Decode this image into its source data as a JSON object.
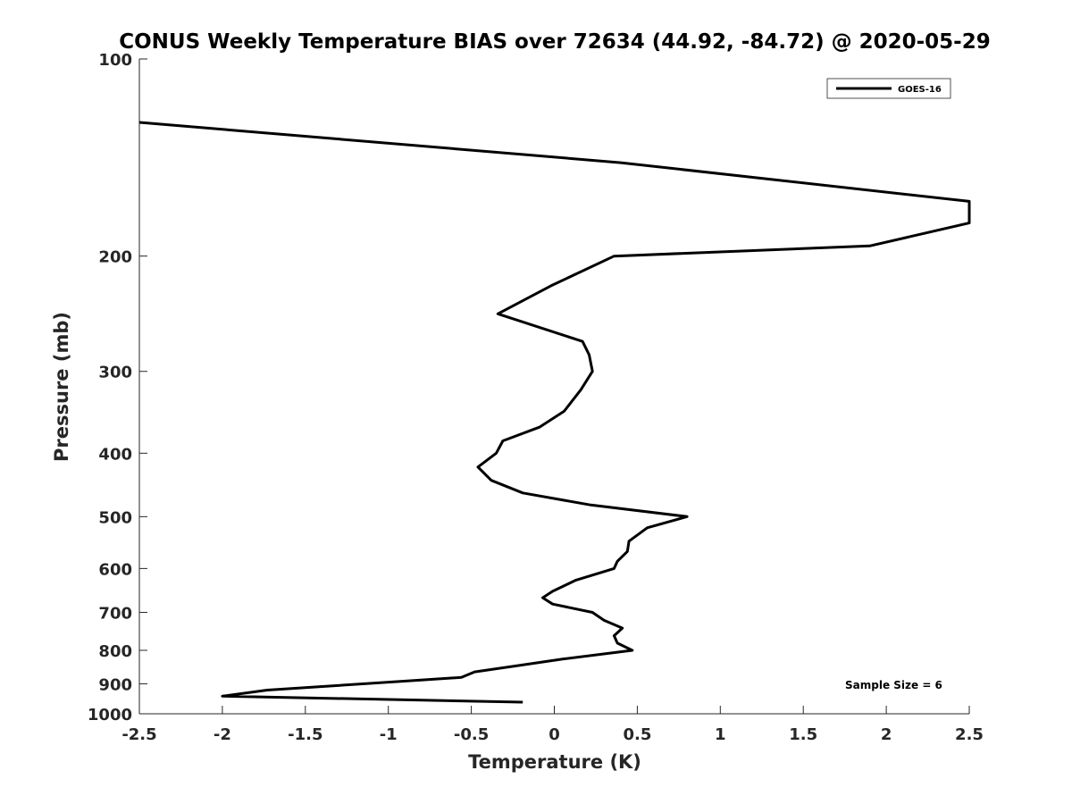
{
  "chart_data": {
    "type": "line",
    "title": "CONUS Weekly Temperature BIAS over 72634 (44.92, -84.72) @ 2020-05-29",
    "xlabel": "Temperature (K)",
    "ylabel": "Pressure (mb)",
    "xlim": [
      -2.5,
      2.5
    ],
    "ylim": [
      100,
      1000
    ],
    "y_scale": "log",
    "y_reversed": true,
    "xticks": [
      -2.5,
      -2,
      -1.5,
      -1,
      -0.5,
      0,
      0.5,
      1,
      1.5,
      2,
      2.5
    ],
    "xtick_labels": [
      "-2.5",
      "-2",
      "-1.5",
      "-1",
      "-0.5",
      "0",
      "0.5",
      "1",
      "1.5",
      "2",
      "2.5"
    ],
    "yticks": [
      100,
      200,
      300,
      400,
      500,
      600,
      700,
      800,
      900,
      1000
    ],
    "ytick_labels": [
      "100",
      "200",
      "300",
      "400",
      "500",
      "600",
      "700",
      "800",
      "900",
      "1000"
    ],
    "grid": false,
    "legend_position": "top-right",
    "series": [
      {
        "name": "GOES-16",
        "color": "#000000",
        "points": [
          {
            "x": -2.5,
            "y": 125
          },
          {
            "x": 0.4,
            "y": 144
          },
          {
            "x": 2.5,
            "y": 165
          },
          {
            "x": 2.5,
            "y": 178
          },
          {
            "x": 1.9,
            "y": 193
          },
          {
            "x": 0.36,
            "y": 200
          },
          {
            "x": -0.02,
            "y": 222
          },
          {
            "x": -0.34,
            "y": 245
          },
          {
            "x": 0.17,
            "y": 270
          },
          {
            "x": 0.21,
            "y": 283
          },
          {
            "x": 0.23,
            "y": 300
          },
          {
            "x": 0.16,
            "y": 320
          },
          {
            "x": 0.06,
            "y": 345
          },
          {
            "x": -0.09,
            "y": 365
          },
          {
            "x": -0.31,
            "y": 383
          },
          {
            "x": -0.35,
            "y": 400
          },
          {
            "x": -0.46,
            "y": 420
          },
          {
            "x": -0.38,
            "y": 440
          },
          {
            "x": -0.19,
            "y": 460
          },
          {
            "x": 0.22,
            "y": 480
          },
          {
            "x": 0.8,
            "y": 500
          },
          {
            "x": 0.56,
            "y": 520
          },
          {
            "x": 0.45,
            "y": 545
          },
          {
            "x": 0.44,
            "y": 565
          },
          {
            "x": 0.38,
            "y": 585
          },
          {
            "x": 0.36,
            "y": 600
          },
          {
            "x": 0.13,
            "y": 625
          },
          {
            "x": -0.01,
            "y": 650
          },
          {
            "x": -0.07,
            "y": 665
          },
          {
            "x": -0.01,
            "y": 680
          },
          {
            "x": 0.23,
            "y": 700
          },
          {
            "x": 0.3,
            "y": 720
          },
          {
            "x": 0.41,
            "y": 740
          },
          {
            "x": 0.36,
            "y": 760
          },
          {
            "x": 0.38,
            "y": 780
          },
          {
            "x": 0.47,
            "y": 800
          },
          {
            "x": 0.05,
            "y": 825
          },
          {
            "x": -0.23,
            "y": 845
          },
          {
            "x": -0.48,
            "y": 863
          },
          {
            "x": -0.56,
            "y": 880
          },
          {
            "x": -1.73,
            "y": 920
          },
          {
            "x": -2.0,
            "y": 940
          },
          {
            "x": -0.19,
            "y": 960
          }
        ]
      }
    ],
    "annotation": "Sample Size = 6"
  }
}
